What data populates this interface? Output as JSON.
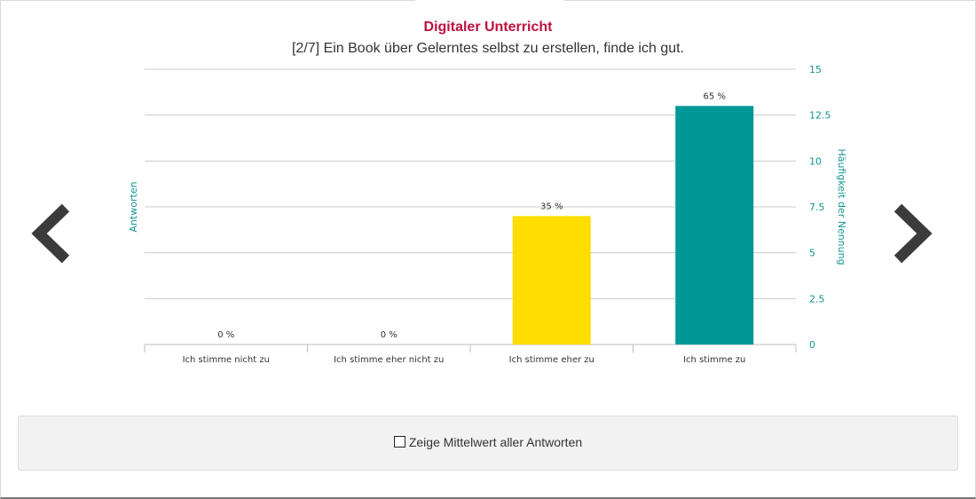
{
  "header": {
    "title": "Digitaler Unterricht",
    "question": "[2/7] Ein Book über Gelerntes selbst zu erstellen, finde ich gut."
  },
  "navigation": {
    "prev_icon": "chevron-left-icon",
    "next_icon": "chevron-right-icon"
  },
  "toggle": {
    "label": "Zeige Mittelwert aller Antworten",
    "checked": false
  },
  "colors": {
    "title": "#c0103f",
    "axis_text": "#139590",
    "bar_yellow": "#ffdd00",
    "bar_teal": "#009896",
    "nav_arrow": "#3b3b3b"
  },
  "chart_data": {
    "type": "bar",
    "title": "Digitaler Unterricht",
    "subtitle": "[2/7] Ein Book über Gelerntes selbst zu erstellen, finde ich gut.",
    "categories": [
      "Ich stimme nicht zu",
      "Ich stimme eher nicht zu",
      "Ich stimme eher zu",
      "Ich stimme zu"
    ],
    "values": [
      0,
      0,
      7,
      13
    ],
    "value_labels": [
      "0 %",
      "0 %",
      "35 %",
      "65 %"
    ],
    "bar_colors": [
      "#ffdd00",
      "#009896",
      "#ffdd00",
      "#009896"
    ],
    "ylabel_left": "Antworten",
    "ylabel_right": "Häufigkeit der Nennung",
    "ylim": [
      0,
      15
    ],
    "yticks": [
      "0",
      "2.5",
      "5",
      "7.5",
      "10",
      "12.5",
      "15"
    ],
    "grid": true,
    "y_axis_side": "right"
  }
}
